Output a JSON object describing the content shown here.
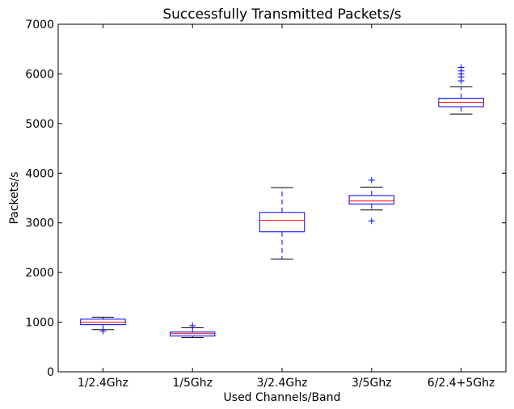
{
  "chart_data": {
    "type": "box",
    "title": "Successfully Transmitted Packets/s",
    "xlabel": "Used Channels/Band",
    "ylabel": "Packets/s",
    "ylim": [
      0,
      7000
    ],
    "yticks": [
      0,
      1000,
      2000,
      3000,
      4000,
      5000,
      6000,
      7000
    ],
    "grid": false,
    "colors": {
      "box": "#0000ff",
      "median": "#ff0000",
      "cap": "#000000",
      "flier": "#0000ff"
    },
    "categories": [
      "1/2.4Ghz",
      "1/5Ghz",
      "3/2.4Ghz",
      "3/5Ghz",
      "6/2.4+5Ghz"
    ],
    "boxes": [
      {
        "whisker_low": 850,
        "q1": 950,
        "median": 1000,
        "q3": 1060,
        "whisker_high": 1100,
        "outliers": [
          820
        ]
      },
      {
        "whisker_low": 690,
        "q1": 720,
        "median": 770,
        "q3": 800,
        "whisker_high": 890,
        "outliers": [
          930
        ]
      },
      {
        "whisker_low": 2270,
        "q1": 2820,
        "median": 3050,
        "q3": 3210,
        "whisker_high": 3710,
        "outliers": []
      },
      {
        "whisker_low": 3260,
        "q1": 3380,
        "median": 3440,
        "q3": 3550,
        "whisker_high": 3720,
        "outliers": [
          3040,
          3860
        ]
      },
      {
        "whisker_low": 5190,
        "q1": 5340,
        "median": 5430,
        "q3": 5510,
        "whisker_high": 5740,
        "outliers": [
          5860,
          5940,
          6000,
          6060,
          6130
        ]
      }
    ]
  }
}
